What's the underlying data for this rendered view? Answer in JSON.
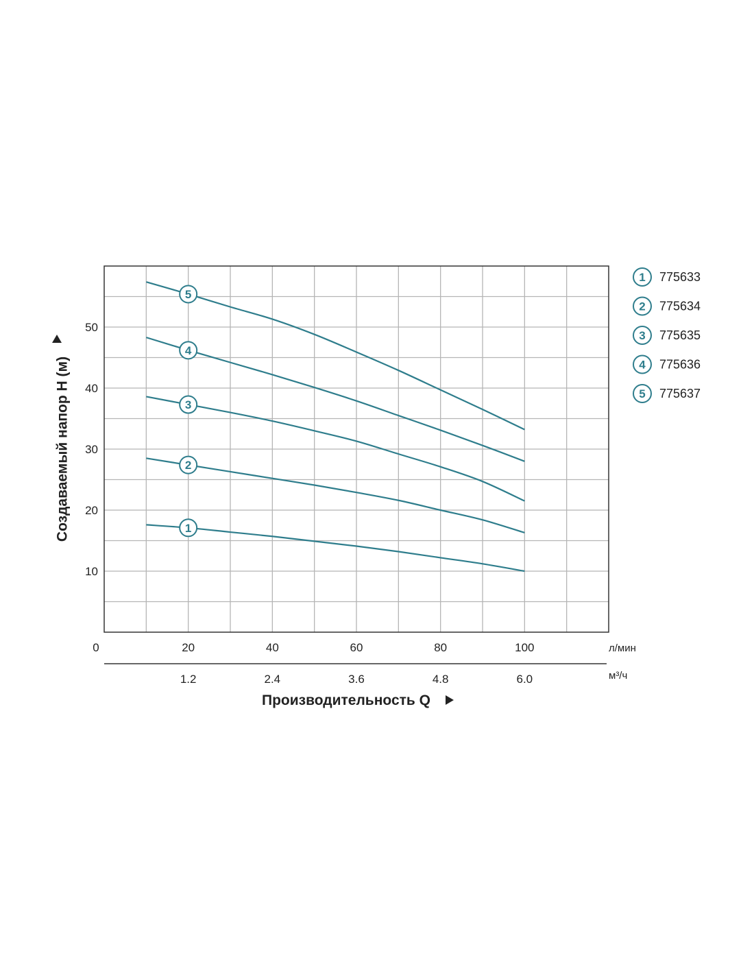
{
  "chart_data": {
    "type": "line",
    "xlabel": "Производительность Q",
    "ylabel": "Создаваемый напор H (м)",
    "x_unit": "л/мин",
    "x2_unit": "м³/ч",
    "x_origin_label": "0",
    "xlim": [
      0,
      120
    ],
    "ylim": [
      0,
      60
    ],
    "x_ticks": [
      "20",
      "40",
      "60",
      "80",
      "100"
    ],
    "x2_ticks": [
      "1.2",
      "2.4",
      "3.6",
      "4.8",
      "6.0"
    ],
    "y_ticks": [
      "10",
      "20",
      "30",
      "40",
      "50"
    ],
    "grid": true,
    "legend_position": "right",
    "line_color": "#2e7d8c",
    "series": [
      {
        "name": "775633",
        "marker": "1",
        "marker_x": 20,
        "x": [
          10,
          20,
          30,
          40,
          50,
          60,
          70,
          80,
          90,
          100
        ],
        "y": [
          17.6,
          17.1,
          16.4,
          15.7,
          14.9,
          14.1,
          13.2,
          12.2,
          11.2,
          10.0
        ]
      },
      {
        "name": "775634",
        "marker": "2",
        "marker_x": 20,
        "x": [
          10,
          20,
          30,
          40,
          50,
          60,
          70,
          80,
          90,
          100
        ],
        "y": [
          28.5,
          27.4,
          26.3,
          25.2,
          24.1,
          22.9,
          21.6,
          20.0,
          18.4,
          16.3
        ]
      },
      {
        "name": "775635",
        "marker": "3",
        "marker_x": 20,
        "x": [
          10,
          20,
          30,
          40,
          50,
          60,
          70,
          80,
          90,
          100
        ],
        "y": [
          38.6,
          37.3,
          36.0,
          34.6,
          33.0,
          31.3,
          29.2,
          27.1,
          24.7,
          21.5
        ]
      },
      {
        "name": "775636",
        "marker": "4",
        "marker_x": 20,
        "x": [
          10,
          20,
          30,
          40,
          50,
          60,
          70,
          80,
          90,
          100
        ],
        "y": [
          48.3,
          46.2,
          44.2,
          42.2,
          40.1,
          37.9,
          35.5,
          33.1,
          30.6,
          28.0
        ]
      },
      {
        "name": "775637",
        "marker": "5",
        "marker_x": 20,
        "x": [
          10,
          20,
          30,
          40,
          50,
          60,
          70,
          80,
          90,
          100
        ],
        "y": [
          57.4,
          55.4,
          53.3,
          51.3,
          48.8,
          45.9,
          42.9,
          39.7,
          36.5,
          33.2
        ]
      }
    ]
  }
}
